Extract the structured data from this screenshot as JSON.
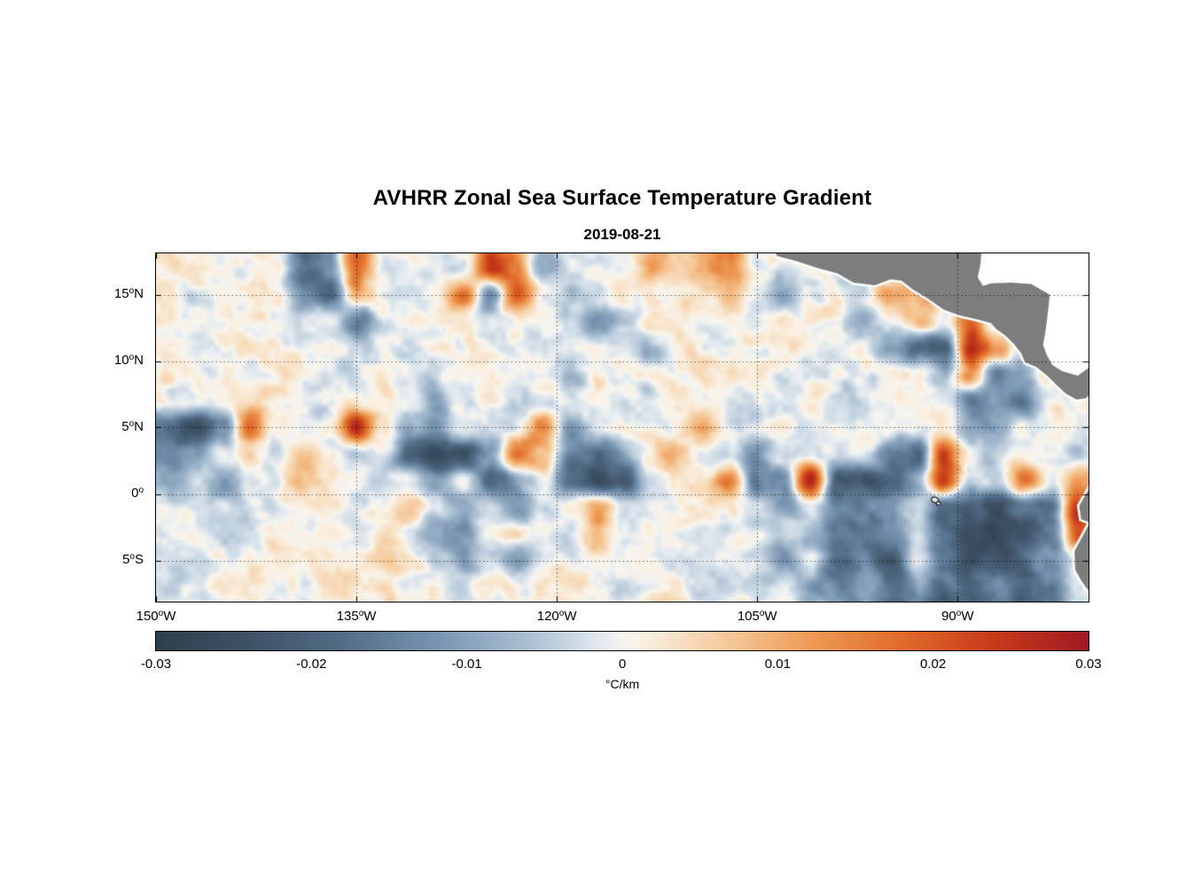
{
  "title": "AVHRR Zonal Sea Surface Temperature Gradient",
  "subtitle": "2019-08-21",
  "deg_symbol": "o",
  "axes": {
    "lon_range": [
      -150,
      -80.2
    ],
    "lat_range": [
      -8.1,
      18.1
    ],
    "x_ticks": [
      {
        "value": -150,
        "deg": "150",
        "dir": "W"
      },
      {
        "value": -135,
        "deg": "135",
        "dir": "W"
      },
      {
        "value": -120,
        "deg": "120",
        "dir": "W"
      },
      {
        "value": -105,
        "deg": "105",
        "dir": "W"
      },
      {
        "value": -90,
        "deg": "90",
        "dir": "W"
      }
    ],
    "y_ticks": [
      {
        "value": 15,
        "deg": "15",
        "dir": "N"
      },
      {
        "value": 10,
        "deg": "10",
        "dir": "N"
      },
      {
        "value": 5,
        "deg": "5",
        "dir": "N"
      },
      {
        "value": 0,
        "deg": "0",
        "dir": ""
      },
      {
        "value": -5,
        "deg": "5",
        "dir": "S"
      }
    ]
  },
  "colorbar": {
    "min": -0.03,
    "max": 0.03,
    "label": "°C/km",
    "ticks": [
      {
        "value": -0.03,
        "label": "-0.03"
      },
      {
        "value": -0.02,
        "label": "-0.02"
      },
      {
        "value": -0.01,
        "label": "-0.01"
      },
      {
        "value": 0,
        "label": "0"
      },
      {
        "value": 0.01,
        "label": "0.01"
      },
      {
        "value": 0.02,
        "label": "0.02"
      },
      {
        "value": 0.03,
        "label": "0.03"
      }
    ]
  },
  "chart_data": {
    "type": "heatmap",
    "title": "AVHRR Zonal Sea Surface Temperature Gradient",
    "subtitle": "2019-08-21",
    "xlabel": "",
    "ylabel": "",
    "units": "°C/km",
    "value_range": [
      -0.03,
      0.03
    ],
    "lon_ticks": [
      -150,
      -135,
      -120,
      -105,
      -90
    ],
    "lat_ticks": [
      15,
      10,
      5,
      0,
      -5
    ],
    "grid": {
      "comment": "zonal SST gradient (°C/km) on 2° cells; rows from 17N to 7S, cols from 149W to 81W",
      "lon_start": -149,
      "lon_step": 2,
      "lat_start": 17,
      "lat_step": -2,
      "levels": {
        "A": -0.03,
        "B": -0.025,
        "C": -0.02,
        "D": -0.015,
        "E": -0.01,
        "F": -0.002,
        "G": 0.0,
        "H": 0.002,
        "I": 0.01,
        "J": 0.015,
        "K": 0.02,
        "L": 0.025,
        "M": 0.03
      },
      "rows": [
        "GGGGFCDKGHGFLJEGHGIHIJHGGGGGGGGGGGG",
        "GFGGGDCIHGGJDKGFGHGGHIGEGHGJIGGGGGG",
        "GGHGGFGDGHGGFHGFEFGHGGFGHGEGIGKHGGG",
        "GFGHGGHFGGHGGGFGHGEGHGGHFGGECCLJFGG",
        "GGGGHGFGHGFGHGGEGHGFGHGFGHGGFEIDEGG",
        "FGGHGGFHGGEGHFGGHGFHGGFGHGFHGGDEDFG",
        "CBDKGFHLGEDFGGJEGHGGIFGHFGGHFHEEGHG",
        "DEGHGIHFGCBCEKIDCEGIGFEGHFGDCLGFHGF",
        "EFEGHIGGFGEFDEGCBCFHGJDEMCBCELFGJFJ",
        "FGFGGHGFGIFEFEFGIGFGHGFEGEDEGCCBDCL",
        "GHGFHGGFGFEEGHGFIFGHGFGFEDCDFDBABCK",
        "GFGGHFGGHGFEFEGGHGFGGHFEFCDCFDBBCEG",
        "FGHGGFHGGFGFGGHGGFGHGGFGEDEDECCDCDF"
      ]
    },
    "colormap_stops": [
      {
        "v": -0.032,
        "c": [
          40,
          53,
          66
        ]
      },
      {
        "v": -0.03,
        "c": [
          47,
          62,
          77
        ]
      },
      {
        "v": -0.024,
        "c": [
          62,
          82,
          102
        ]
      },
      {
        "v": -0.018,
        "c": [
          82,
          108,
          134
        ]
      },
      {
        "v": -0.012,
        "c": [
          120,
          148,
          176
        ]
      },
      {
        "v": -0.007,
        "c": [
          162,
          184,
          205
        ]
      },
      {
        "v": -0.003,
        "c": [
          206,
          219,
          230
        ]
      },
      {
        "v": -0.001,
        "c": [
          232,
          237,
          240
        ]
      },
      {
        "v": 0.0,
        "c": [
          246,
          244,
          239
        ]
      },
      {
        "v": 0.001,
        "c": [
          249,
          242,
          230
        ]
      },
      {
        "v": 0.003,
        "c": [
          248,
          228,
          203
        ]
      },
      {
        "v": 0.007,
        "c": [
          245,
          199,
          150
        ]
      },
      {
        "v": 0.012,
        "c": [
          238,
          156,
          88
        ]
      },
      {
        "v": 0.018,
        "c": [
          225,
          107,
          42
        ]
      },
      {
        "v": 0.024,
        "c": [
          198,
          58,
          26
        ]
      },
      {
        "v": 0.03,
        "c": [
          160,
          26,
          34
        ]
      },
      {
        "v": 0.032,
        "c": [
          150,
          22,
          34
        ]
      }
    ],
    "land_color": "#7d7d7d",
    "nodata_color": "#ffffff",
    "land": {
      "central_america": [
        [
          -103.8,
          18.3
        ],
        [
          -103.5,
          17.9
        ],
        [
          -102.0,
          17.5
        ],
        [
          -100.5,
          17.0
        ],
        [
          -99.0,
          16.6
        ],
        [
          -97.8,
          15.9
        ],
        [
          -96.2,
          15.7
        ],
        [
          -95.0,
          16.15
        ],
        [
          -94.2,
          16.05
        ],
        [
          -93.3,
          15.35
        ],
        [
          -92.3,
          14.75
        ],
        [
          -91.0,
          13.85
        ],
        [
          -89.9,
          13.45
        ],
        [
          -88.4,
          13.1
        ],
        [
          -87.5,
          12.85
        ],
        [
          -87.1,
          12.4
        ],
        [
          -86.4,
          11.9
        ],
        [
          -85.8,
          11.3
        ],
        [
          -85.25,
          10.6
        ],
        [
          -84.95,
          9.9
        ],
        [
          -84.1,
          9.55
        ],
        [
          -83.3,
          8.9
        ],
        [
          -82.6,
          8.2
        ],
        [
          -81.9,
          7.55
        ],
        [
          -81.1,
          7.1
        ],
        [
          -80.4,
          7.2
        ],
        [
          -79.9,
          7.6
        ],
        [
          -79.9,
          9.7
        ],
        [
          -81.0,
          8.9
        ],
        [
          -82.2,
          9.25
        ],
        [
          -82.9,
          9.7
        ],
        [
          -83.3,
          10.4
        ],
        [
          -83.6,
          11.2
        ],
        [
          -83.4,
          12.4
        ],
        [
          -83.2,
          14.0
        ],
        [
          -83.1,
          15.0
        ],
        [
          -84.5,
          15.8
        ],
        [
          -86.0,
          15.9
        ],
        [
          -87.5,
          15.85
        ],
        [
          -88.1,
          15.65
        ],
        [
          -88.5,
          16.3
        ],
        [
          -88.3,
          17.2
        ],
        [
          -88.2,
          18.3
        ]
      ],
      "caribbean_nodata": [
        [
          -88.2,
          18.3
        ],
        [
          -88.3,
          17.2
        ],
        [
          -88.5,
          16.3
        ],
        [
          -88.1,
          15.65
        ],
        [
          -87.5,
          15.85
        ],
        [
          -86.0,
          15.9
        ],
        [
          -84.5,
          15.8
        ],
        [
          -83.1,
          15.0
        ],
        [
          -83.2,
          14.0
        ],
        [
          -83.4,
          12.4
        ],
        [
          -83.6,
          11.2
        ],
        [
          -83.3,
          10.4
        ],
        [
          -82.9,
          9.7
        ],
        [
          -82.2,
          9.25
        ],
        [
          -81.0,
          8.9
        ],
        [
          -79.9,
          9.7
        ],
        [
          -79.5,
          18.3
        ]
      ],
      "south_america": [
        [
          -79.5,
          1.2
        ],
        [
          -80.1,
          0.5
        ],
        [
          -80.45,
          -0.1
        ],
        [
          -80.9,
          -0.9
        ],
        [
          -80.75,
          -1.9
        ],
        [
          -80.1,
          -2.15
        ],
        [
          -80.6,
          -3.1
        ],
        [
          -81.25,
          -4.3
        ],
        [
          -81.2,
          -5.7
        ],
        [
          -80.7,
          -6.6
        ],
        [
          -79.9,
          -7.7
        ],
        [
          -79.4,
          -8.5
        ],
        [
          -79.0,
          -8.5
        ],
        [
          -79.0,
          1.2
        ]
      ]
    },
    "galapagos_mark": {
      "lon": -91.7,
      "lat": -0.45
    }
  }
}
